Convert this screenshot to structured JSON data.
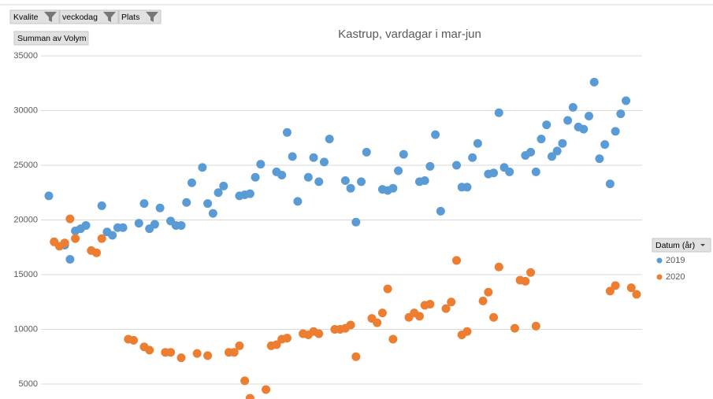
{
  "chart_data": {
    "type": "scatter",
    "title": "Kastrup, vardagar i mar-jun",
    "filters": [
      "Kvalite",
      "veckodag",
      "Plats"
    ],
    "value_field": "Summan av Volym",
    "legend_title": "Datum (år)",
    "categories": [
      null,
      null,
      null,
      null,
      null,
      null,
      null,
      null,
      null,
      null,
      null,
      null,
      null,
      null,
      null,
      null,
      null,
      null,
      null,
      null,
      null,
      null,
      null,
      null,
      null,
      null,
      null,
      null,
      null,
      null,
      null,
      null,
      null,
      null,
      null,
      null,
      null,
      null,
      null,
      null,
      null,
      null,
      null,
      null,
      null,
      null,
      null,
      null,
      null,
      null,
      null,
      null,
      null,
      null,
      null,
      null,
      null,
      null,
      null,
      null,
      null,
      null,
      null,
      null,
      null,
      null,
      null,
      null,
      null,
      null,
      null,
      null,
      null,
      null,
      null,
      null,
      null,
      null,
      null,
      null,
      null,
      null,
      null,
      null,
      null,
      null,
      null,
      null,
      null,
      null,
      null,
      null,
      null,
      null,
      null,
      null,
      null,
      null,
      null,
      null,
      null,
      null,
      null,
      null,
      null,
      null,
      null,
      null,
      null,
      null,
      null,
      null
    ],
    "series": [
      {
        "name": "2019",
        "color": "#5b9bd5",
        "values": [
          22200,
          null,
          null,
          17700,
          16400,
          19000,
          19200,
          19500,
          null,
          null,
          21300,
          18900,
          18600,
          19300,
          19300,
          null,
          null,
          19700,
          21500,
          19200,
          19600,
          21100,
          null,
          19900,
          19500,
          19500,
          21600,
          23400,
          null,
          24800,
          21500,
          20600,
          22500,
          23100,
          null,
          null,
          22200,
          22300,
          22400,
          23900,
          25100,
          null,
          null,
          24400,
          24100,
          28000,
          25800,
          21700,
          null,
          23900,
          25700,
          23500,
          25300,
          27400,
          null,
          null,
          23600,
          22900,
          19800,
          23500,
          26200,
          null,
          null,
          22800,
          22700,
          22900,
          24500,
          26000,
          null,
          null,
          23500,
          23600,
          24900,
          27800,
          20800,
          null,
          null,
          25000,
          23000,
          23000,
          25700,
          27000,
          null,
          24200,
          24300,
          29800,
          24800,
          24400,
          null,
          null,
          25900,
          26200,
          24400,
          27400,
          28700,
          25800,
          26300,
          27000,
          29100,
          30300,
          28500,
          28300,
          29500,
          32600,
          25600,
          26900,
          23300,
          28100,
          29700,
          30900,
          null,
          null
        ]
      },
      {
        "name": "2020",
        "color": "#ed7d31",
        "values": [
          null,
          18000,
          17600,
          17900,
          20100,
          18300,
          null,
          null,
          17200,
          17000,
          18300,
          null,
          null,
          null,
          null,
          9100,
          9000,
          null,
          8400,
          8100,
          null,
          null,
          7900,
          7900,
          null,
          7400,
          null,
          null,
          7800,
          null,
          7600,
          null,
          null,
          null,
          7900,
          7900,
          8500,
          5300,
          3700,
          null,
          null,
          4500,
          8500,
          8600,
          9100,
          9200,
          null,
          null,
          9600,
          9500,
          9800,
          9600,
          null,
          null,
          10000,
          10000,
          10100,
          10400,
          7500,
          null,
          null,
          11000,
          10600,
          11500,
          13700,
          9100,
          null,
          null,
          11100,
          11500,
          11200,
          12200,
          12300,
          null,
          null,
          11900,
          12500,
          16300,
          9500,
          9800,
          null,
          null,
          12600,
          13400,
          11100,
          15700,
          null,
          null,
          10100,
          14500,
          14400,
          15200,
          10300,
          null,
          null,
          null,
          null,
          null,
          null,
          null,
          null,
          null,
          null,
          null,
          null,
          null,
          13500,
          14000,
          null,
          null,
          13800,
          13200
        ]
      }
    ],
    "ylim": [
      0,
      35000
    ],
    "yticks": [
      5000,
      10000,
      15000,
      20000,
      25000,
      30000,
      35000
    ],
    "grid": true,
    "legend": "right"
  }
}
